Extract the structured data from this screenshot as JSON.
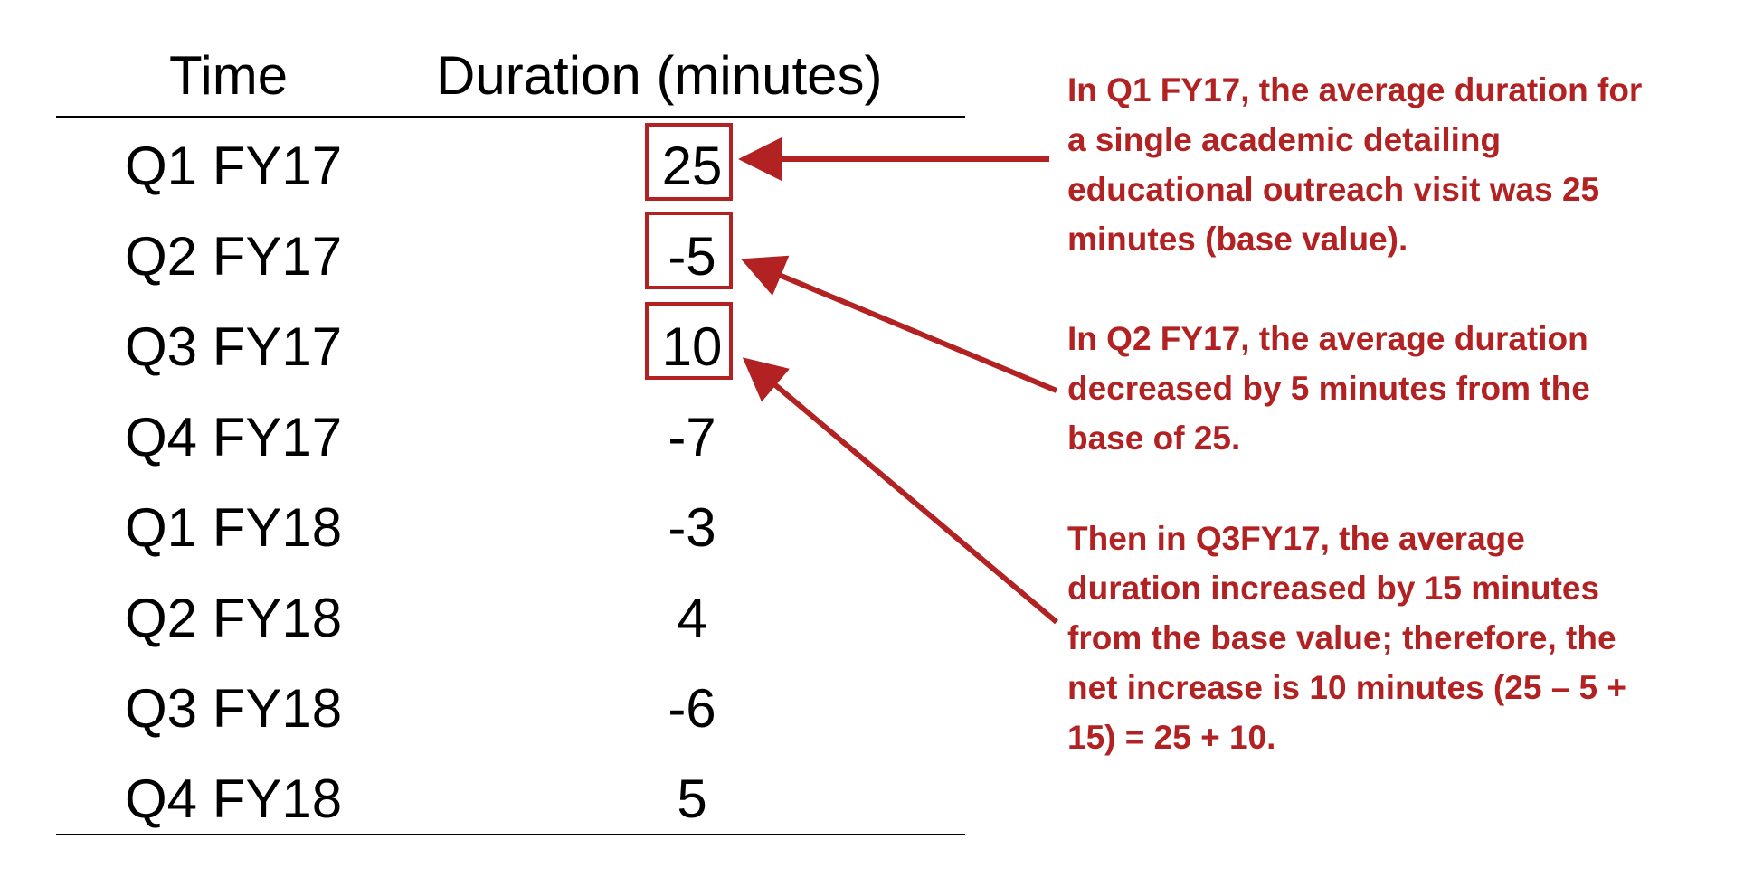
{
  "table": {
    "headers": {
      "time": "Time",
      "duration": "Duration (minutes)"
    },
    "rows": [
      {
        "time": "Q1 FY17",
        "duration": "25"
      },
      {
        "time": "Q2 FY17",
        "duration": "-5"
      },
      {
        "time": "Q3 FY17",
        "duration": "10"
      },
      {
        "time": "Q4 FY17",
        "duration": "-7"
      },
      {
        "time": "Q1 FY18",
        "duration": "-3"
      },
      {
        "time": "Q2 FY18",
        "duration": "4"
      },
      {
        "time": "Q3 FY18",
        "duration": "-6"
      },
      {
        "time": "Q4 FY18",
        "duration": "5"
      }
    ]
  },
  "annotations": [
    {
      "target_row": "Q1 FY17",
      "lines": [
        "In Q1 FY17, the average duration for",
        "a single academic detailing",
        "educational outreach visit was 25",
        "minutes (base value)."
      ]
    },
    {
      "target_row": "Q2 FY17",
      "lines": [
        "In Q2 FY17, the average duration",
        "decreased by 5 minutes from the",
        "base of 25."
      ]
    },
    {
      "target_row": "Q3 FY17",
      "lines": [
        "Then in Q3FY17, the average",
        "duration increased by 15 minutes",
        "from the base value; therefore, the",
        "net increase is 10 minutes (25 – 5 +",
        "15) = 25 + 10."
      ]
    }
  ],
  "colors": {
    "accent": "#b22222",
    "text": "#000000",
    "background": "#ffffff"
  }
}
